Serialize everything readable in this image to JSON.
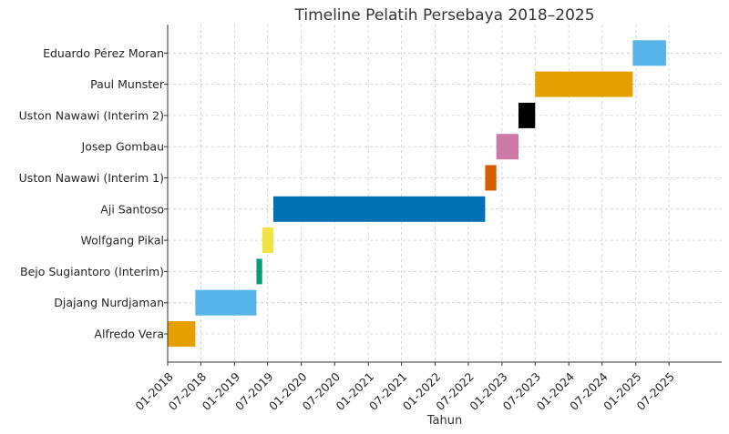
{
  "chart_data": {
    "type": "gantt",
    "title": "Timeline Pelatih Persebaya 2018–2025",
    "xlabel": "Tahun",
    "ylabel": "",
    "x_tick_labels": [
      "01-2018",
      "07-2018",
      "01-2019",
      "07-2019",
      "01-2020",
      "07-2020",
      "01-2021",
      "07-2021",
      "01-2022",
      "07-2022",
      "01-2023",
      "07-2023",
      "01-2024",
      "07-2024",
      "01-2025",
      "07-2025"
    ],
    "x_ticks": [
      "2018-01",
      "2018-07",
      "2019-01",
      "2019-07",
      "2020-01",
      "2020-07",
      "2021-01",
      "2021-07",
      "2022-01",
      "2022-07",
      "2023-01",
      "2023-07",
      "2024-01",
      "2024-07",
      "2025-01",
      "2025-07"
    ],
    "xlim": [
      "2018-01-01",
      "2026-04-15"
    ],
    "grid": true,
    "legend": "none",
    "coaches": [
      {
        "name": "Alfredo Vera",
        "start": "2018-01-01",
        "end": "2018-06-01",
        "color": "#E69F00"
      },
      {
        "name": "Djajang Nurdjaman",
        "start": "2018-06-01",
        "end": "2019-05-01",
        "color": "#56B4E9"
      },
      {
        "name": "Bejo Sugiantoro (Interim)",
        "start": "2019-05-01",
        "end": "2019-06-01",
        "color": "#009E73"
      },
      {
        "name": "Wolfgang Pikal",
        "start": "2019-06-01",
        "end": "2019-08-01",
        "color": "#F0E442"
      },
      {
        "name": "Aji Santoso",
        "start": "2019-08-01",
        "end": "2022-10-01",
        "color": "#0072B2"
      },
      {
        "name": "Uston Nawawi (Interim 1)",
        "start": "2022-10-01",
        "end": "2022-12-01",
        "color": "#D55E00"
      },
      {
        "name": "Josep Gombau",
        "start": "2022-12-01",
        "end": "2023-04-01",
        "color": "#CC79A7"
      },
      {
        "name": "Uston Nawawi (Interim 2)",
        "start": "2023-04-01",
        "end": "2023-07-01",
        "color": "#000000"
      },
      {
        "name": "Paul Munster",
        "start": "2023-07-01",
        "end": "2024-12-15",
        "color": "#E69F00"
      },
      {
        "name": "Eduardo Pérez Moran",
        "start": "2024-12-15",
        "end": "2025-06-15",
        "color": "#56B4E9"
      }
    ]
  }
}
